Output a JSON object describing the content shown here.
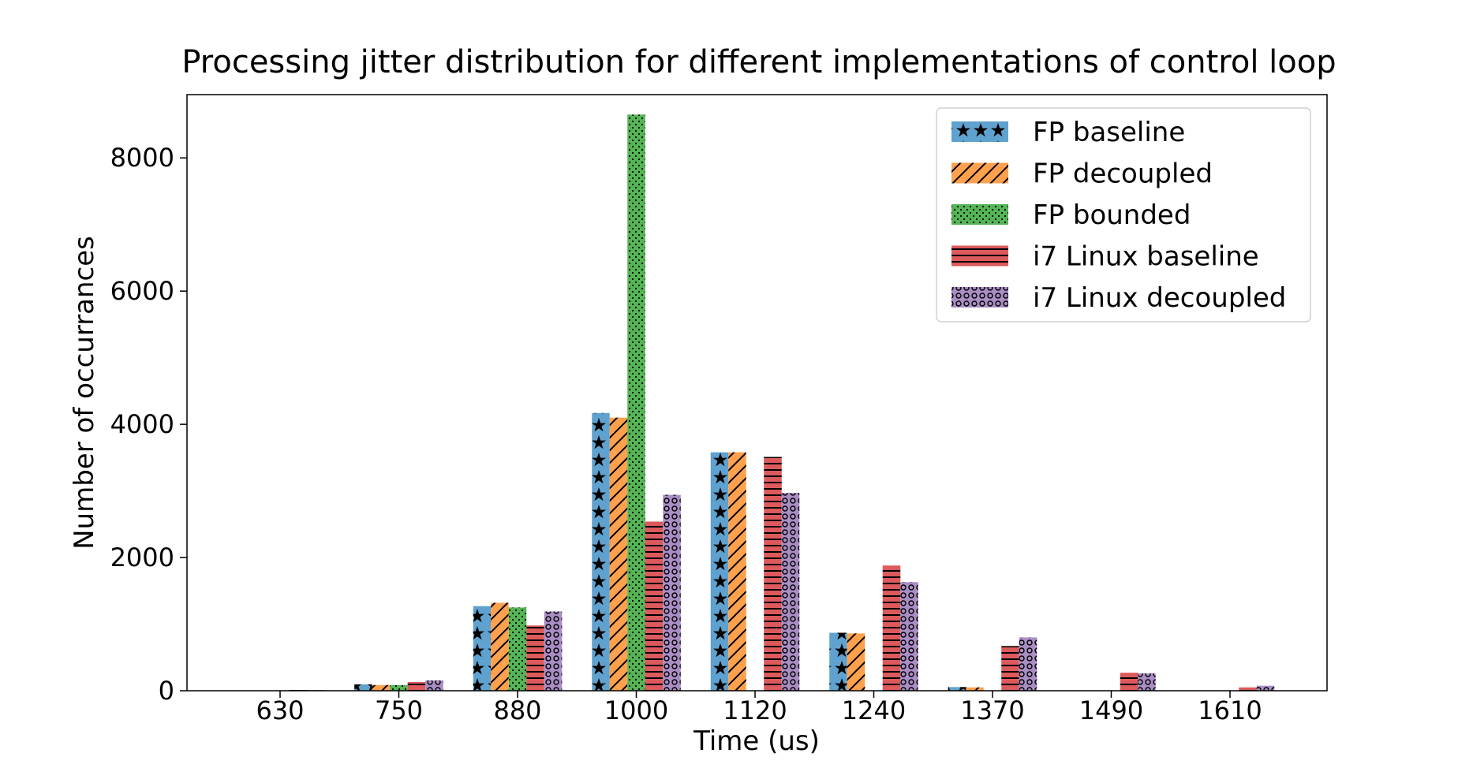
{
  "chart_data": {
    "type": "bar",
    "title": "Processing jitter distribution for different implementations of control loop",
    "xlabel": "Time (us)",
    "ylabel": "Number of occurrances",
    "categories": [
      "630",
      "750",
      "880",
      "1000",
      "1120",
      "1240",
      "1370",
      "1490",
      "1610"
    ],
    "ylim": [
      0,
      8950
    ],
    "yticks": [
      0,
      2000,
      4000,
      6000,
      8000
    ],
    "grid": false,
    "legend_position": "top-right",
    "series": [
      {
        "name": "FP baseline",
        "color": "#5fa2cf",
        "hatch": "stars",
        "values": [
          0,
          95,
          1270,
          4170,
          3580,
          870,
          55,
          0,
          0
        ]
      },
      {
        "name": "FP decoupled",
        "color": "#ffa04d",
        "hatch": "diagonal",
        "values": [
          0,
          85,
          1320,
          4100,
          3580,
          860,
          50,
          0,
          0
        ]
      },
      {
        "name": "FP bounded",
        "color": "#55b555",
        "hatch": "dots",
        "values": [
          0,
          85,
          1250,
          8650,
          0,
          0,
          0,
          0,
          0
        ]
      },
      {
        "name": "i7 Linux baseline",
        "color": "#dc5a5b",
        "hatch": "horizontal",
        "values": [
          10,
          130,
          980,
          2540,
          3510,
          1880,
          670,
          270,
          50
        ]
      },
      {
        "name": "i7 Linux decoupled",
        "color": "#a98dc4",
        "hatch": "circles",
        "values": [
          10,
          155,
          1190,
          2940,
          2970,
          1630,
          800,
          260,
          75
        ]
      }
    ]
  }
}
